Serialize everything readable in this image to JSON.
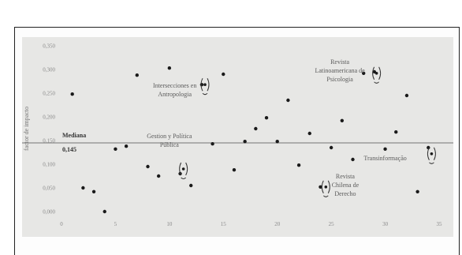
{
  "chart_data": {
    "type": "scatter",
    "title": "",
    "xlabel": "",
    "ylabel": "factor de impacto",
    "xlim": [
      0,
      35
    ],
    "ylim": [
      0,
      0.35
    ],
    "x_ticks": [
      "0",
      "5",
      "10",
      "15",
      "20",
      "25",
      "30",
      "35"
    ],
    "y_ticks": [
      "0,000",
      "0,050",
      "0,100",
      "0,150",
      "0,200",
      "0,250",
      "0,300",
      "0,350"
    ],
    "grid": false,
    "reference_line": {
      "label": "Mediana",
      "value_label": "0,145",
      "y": 0.145
    },
    "points": [
      {
        "x": 1,
        "y": 0.248
      },
      {
        "x": 2,
        "y": 0.05
      },
      {
        "x": 3,
        "y": 0.042
      },
      {
        "x": 4,
        "y": 0.0
      },
      {
        "x": 5,
        "y": 0.132
      },
      {
        "x": 6,
        "y": 0.138
      },
      {
        "x": 7,
        "y": 0.288
      },
      {
        "x": 8,
        "y": 0.095
      },
      {
        "x": 9,
        "y": 0.075
      },
      {
        "x": 10,
        "y": 0.303
      },
      {
        "x": 11,
        "y": 0.08
      },
      {
        "x": 12,
        "y": 0.055
      },
      {
        "x": 13,
        "y": 0.268
      },
      {
        "x": 14,
        "y": 0.143
      },
      {
        "x": 15,
        "y": 0.29
      },
      {
        "x": 16,
        "y": 0.088
      },
      {
        "x": 17,
        "y": 0.148
      },
      {
        "x": 18,
        "y": 0.175
      },
      {
        "x": 19,
        "y": 0.198
      },
      {
        "x": 20,
        "y": 0.148
      },
      {
        "x": 21,
        "y": 0.235
      },
      {
        "x": 22,
        "y": 0.098
      },
      {
        "x": 23,
        "y": 0.165
      },
      {
        "x": 24,
        "y": 0.052
      },
      {
        "x": 25,
        "y": 0.135
      },
      {
        "x": 26,
        "y": 0.192
      },
      {
        "x": 27,
        "y": 0.11
      },
      {
        "x": 28,
        "y": 0.292
      },
      {
        "x": 29,
        "y": 0.295
      },
      {
        "x": 30,
        "y": 0.132
      },
      {
        "x": 31,
        "y": 0.168
      },
      {
        "x": 32,
        "y": 0.245
      },
      {
        "x": 33,
        "y": 0.042
      },
      {
        "x": 34,
        "y": 0.135
      }
    ],
    "annotations": [
      {
        "lines": [
          "Revista",
          "Latinoamericana de",
          "Psicologia"
        ],
        "x": 25.8,
        "y": 0.312
      },
      {
        "lines": [
          "Intersecciones en",
          "Antropologia"
        ],
        "x": 10.5,
        "y": 0.262
      },
      {
        "lines": [
          "Gestion y Política",
          "Pública"
        ],
        "x": 10.0,
        "y": 0.155
      },
      {
        "lines": [
          "Revista",
          "Chilena de",
          "Derecho"
        ],
        "x": 26.3,
        "y": 0.07
      },
      {
        "lines": [
          "Transinformação"
        ],
        "x": 30.0,
        "y": 0.108
      }
    ],
    "brackets": [
      {
        "x": 13.3,
        "y": 0.268
      },
      {
        "x": 11.3,
        "y": 0.09
      },
      {
        "x": 24.5,
        "y": 0.052
      },
      {
        "x": 29.2,
        "y": 0.292
      },
      {
        "x": 34.3,
        "y": 0.122
      }
    ]
  }
}
